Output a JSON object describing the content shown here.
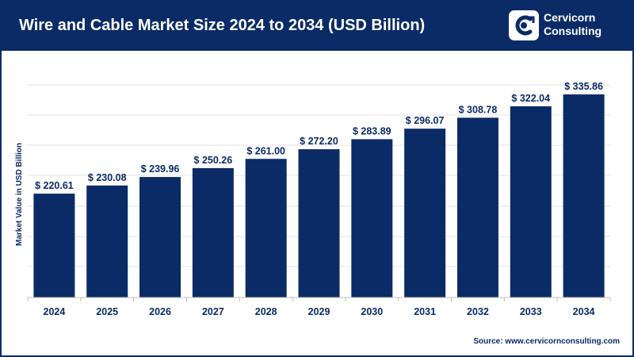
{
  "header": {
    "title": "Wire and Cable Market Size 2024 to 2034 (USD Billion)"
  },
  "logo": {
    "line1": "Cervicorn",
    "line2": "Consulting"
  },
  "source": "Source: www.cervicornconsulting.com",
  "colors": {
    "header_bg": "#0b2b66",
    "bar": "#0b2b66",
    "text": "#0b2b66",
    "grid": "#e3e3e3"
  },
  "chart_data": {
    "type": "bar",
    "categories": [
      "2024",
      "2025",
      "2026",
      "2027",
      "2028",
      "2029",
      "2030",
      "2031",
      "2032",
      "2033",
      "2034"
    ],
    "values": [
      220.61,
      230.08,
      239.96,
      250.26,
      261.0,
      272.2,
      283.89,
      296.07,
      308.78,
      322.04,
      335.86
    ],
    "value_labels": [
      "$ 220.61",
      "$ 230.08",
      "$ 239.96",
      "$ 250.26",
      "$ 261.00",
      "$ 272.20",
      "$ 283.89",
      "$ 296.07",
      "$ 308.78",
      "$ 322.04",
      "$ 335.86"
    ],
    "title": "Wire and Cable Market Size 2024 to 2034 (USD Billion)",
    "xlabel": "",
    "ylabel": "Market Value in USD Billion",
    "grid": true,
    "legend": "none"
  }
}
